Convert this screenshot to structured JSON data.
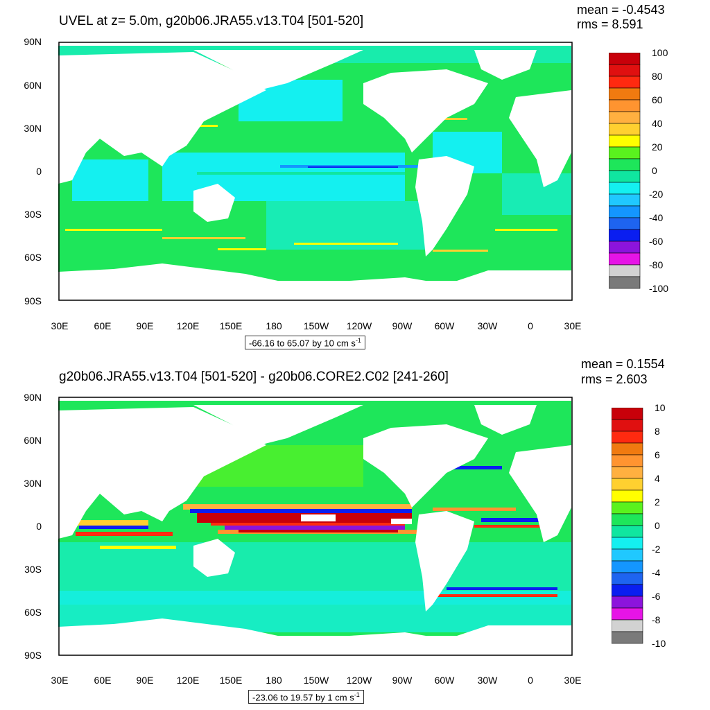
{
  "panels": [
    {
      "title": "UVEL at z=   5.0m, g20b06.JRA55.v13.T04 [501-520]",
      "mean": "mean = -0.4543",
      "rms": "rms = 8.591",
      "range_text": "-66.16 to 65.07 by 10 cm s",
      "range_sup": "-1",
      "colorbar_labels": [
        "100",
        "80",
        "60",
        "40",
        "20",
        "0",
        "-20",
        "-40",
        "-60",
        "-80",
        "-100"
      ]
    },
    {
      "title": "g20b06.JRA55.v13.T04 [501-520] - g20b06.CORE2.C02 [241-260]",
      "mean": "mean = 0.1554",
      "rms": "rms = 2.603",
      "range_text": "-23.06 to 19.57 by 1 cm s",
      "range_sup": "-1",
      "colorbar_labels": [
        "10",
        "8",
        "6",
        "4",
        "2",
        "0",
        "-2",
        "-4",
        "-6",
        "-8",
        "-10"
      ]
    }
  ],
  "lat_labels": [
    "90N",
    "60N",
    "30N",
    "0",
    "30S",
    "60S",
    "90S"
  ],
  "lon_labels": [
    "30E",
    "60E",
    "90E",
    "120E",
    "150E",
    "180",
    "150W",
    "120W",
    "90W",
    "60W",
    "30W",
    "0",
    "30E"
  ],
  "colorbar_colors": [
    "#c8000a",
    "#e01010",
    "#ff2a10",
    "#f07a10",
    "#ff9430",
    "#ffb040",
    "#ffd030",
    "#ffff00",
    "#5af21e",
    "#1ee65a",
    "#10e6a0",
    "#14f0f0",
    "#20c8ff",
    "#1496ff",
    "#1e64f0",
    "#0a1ef0",
    "#8c14dc",
    "#e614e6",
    "#d2d2d2",
    "#7a7a7a"
  ]
}
